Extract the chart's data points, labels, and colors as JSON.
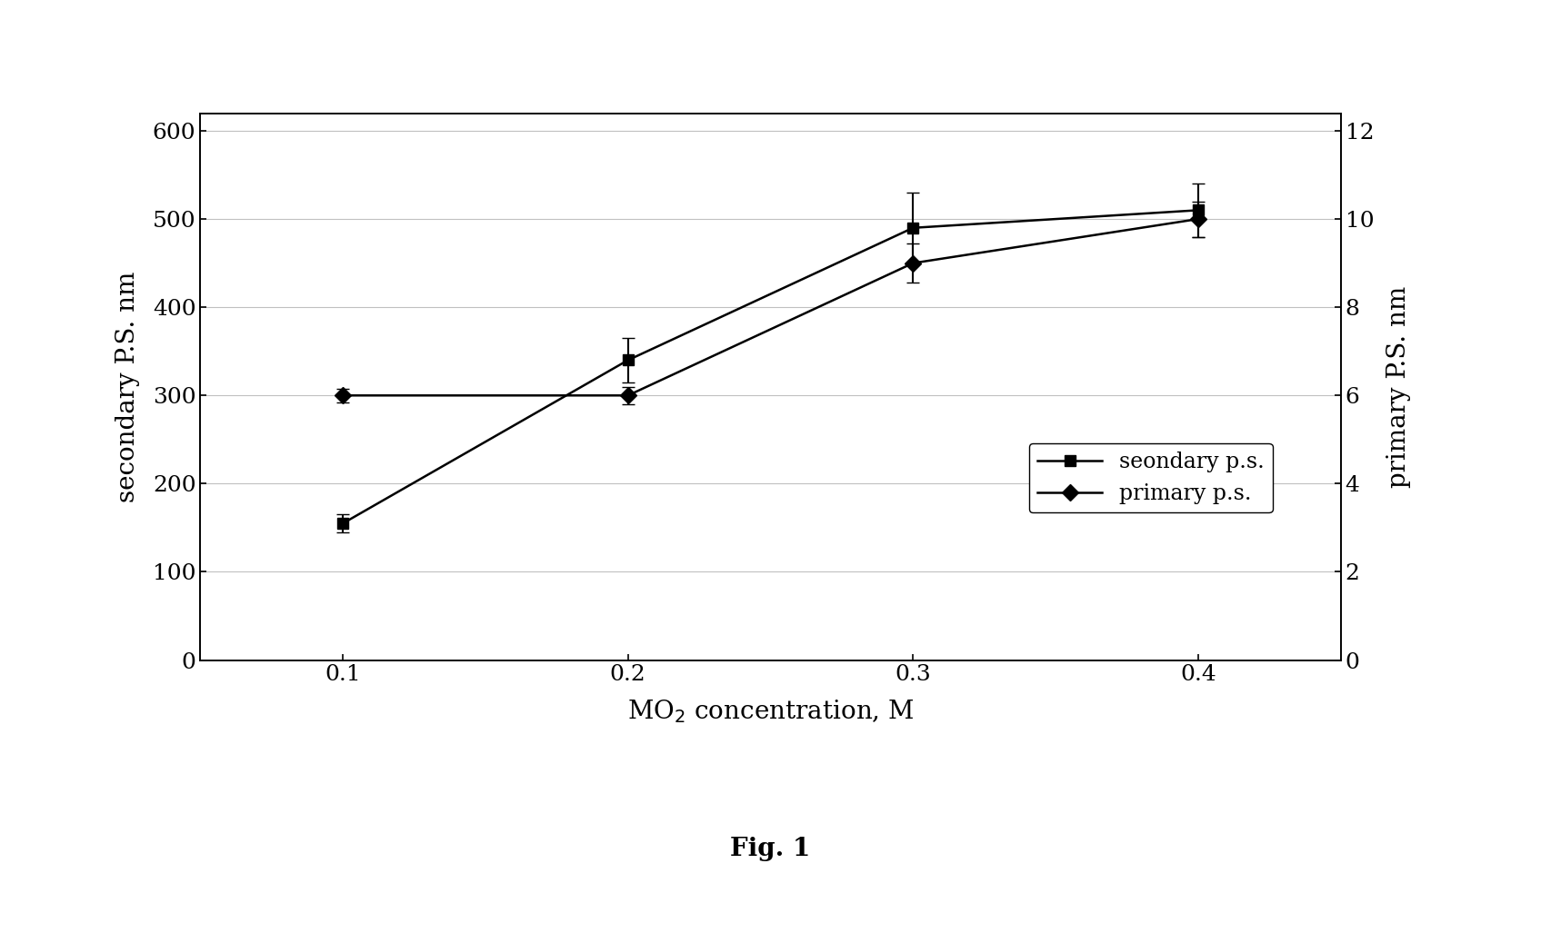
{
  "x": [
    0.1,
    0.2,
    0.3,
    0.4
  ],
  "secondary_ps": [
    155,
    340,
    490,
    510
  ],
  "secondary_ps_err": [
    10,
    25,
    40,
    30
  ],
  "primary_ps": [
    6.0,
    6.0,
    9.0,
    10.0
  ],
  "primary_ps_err": [
    0.15,
    0.2,
    0.45,
    0.4
  ],
  "xlabel": "MO$_2$ concentration, M",
  "ylabel_left": "secondary P.S. nm",
  "ylabel_right": "primary P.S. nm",
  "legend_secondary": "seondary p.s.",
  "legend_primary": "primary p.s.",
  "fig_caption": "Fig. 1",
  "xlim": [
    0.05,
    0.45
  ],
  "ylim_left": [
    0,
    620
  ],
  "ylim_right": [
    0,
    12.4
  ],
  "yticks_left": [
    0,
    100,
    200,
    300,
    400,
    500,
    600
  ],
  "yticks_right": [
    0,
    2,
    4,
    6,
    8,
    10,
    12
  ],
  "xticks": [
    0.1,
    0.2,
    0.3,
    0.4
  ],
  "background_color": "#ffffff",
  "line_color": "#000000",
  "marker_size": 9,
  "linewidth": 1.8,
  "grid_color": "#c0c0c0",
  "font_family": "serif"
}
